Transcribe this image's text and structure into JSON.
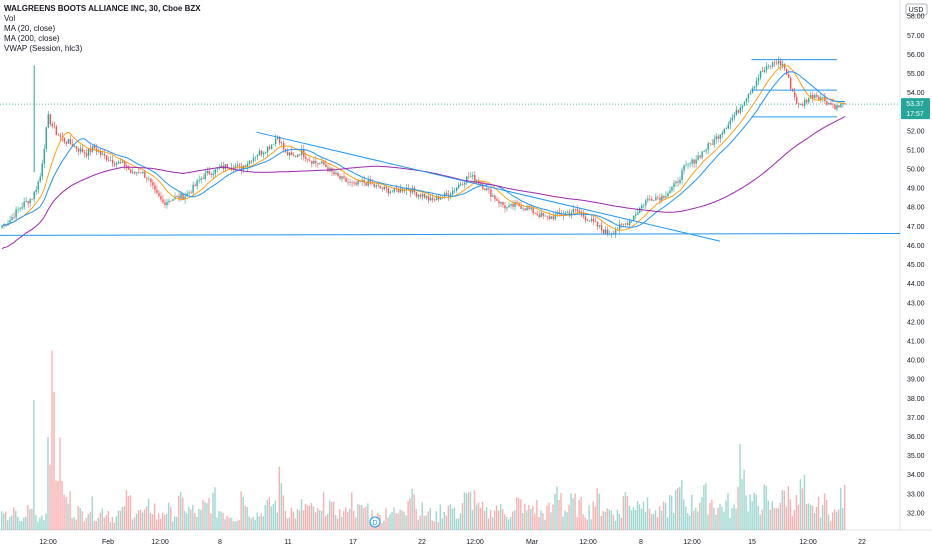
{
  "legend": {
    "title": "WALGREENS BOOTS ALLIANCE INC, 30, Cboe BZX",
    "vol": "Vol",
    "ma20": "MA (20, close)",
    "ma200": "MA (200, close)",
    "vwap": "VWAP (Session, hlc3)"
  },
  "currency": "USD",
  "price_label": "53.37",
  "countdown_label": "17:57",
  "colors": {
    "up": "#26a69a",
    "down": "#ef5350",
    "ma20": "#2196f3",
    "ma200": "#9c27b0",
    "vwap": "#ff9800",
    "trendline": "#2196f3",
    "price_badge": "#26a69a"
  },
  "chart_data": {
    "type": "candlestick",
    "y_ticks": [
      "58.00",
      "57.00",
      "56.00",
      "55.00",
      "54.00",
      "53.00",
      "52.00",
      "51.00",
      "50.00",
      "49.00",
      "48.00",
      "47.00",
      "46.00",
      "45.00",
      "44.00",
      "43.00",
      "42.00",
      "41.00",
      "40.00",
      "39.00",
      "38.00",
      "37.00",
      "36.00",
      "35.00",
      "34.00",
      "33.00",
      "32.00"
    ],
    "ylim": [
      31.5,
      58.4
    ],
    "x_ticks": [
      "12:00",
      "Feb",
      "12:00",
      "8",
      "11",
      "17",
      "22",
      "12:00",
      "Mar",
      "12:00",
      "8",
      "12:00",
      "15",
      "12:00",
      "22"
    ],
    "price_path": [
      47.0,
      47.3,
      47.8,
      48.2,
      48.5,
      49.6,
      52.7,
      51.9,
      51.5,
      51.3,
      51.0,
      50.8,
      51.1,
      50.7,
      50.5,
      50.3,
      50.2,
      49.7,
      49.9,
      49.5,
      48.7,
      48.2,
      48.4,
      48.5,
      48.6,
      49.0,
      49.5,
      49.8,
      49.9,
      50.1,
      50.2,
      50.0,
      50.3,
      50.7,
      50.9,
      51.2,
      51.7,
      50.8,
      50.6,
      50.9,
      50.5,
      50.3,
      50.2,
      49.8,
      49.5,
      49.3,
      49.1,
      49.3,
      49.2,
      49.0,
      48.9,
      48.8,
      48.9,
      49.0,
      48.7,
      48.6,
      48.3,
      48.5,
      48.6,
      48.9,
      49.3,
      49.6,
      49.4,
      49.0,
      48.6,
      48.2,
      47.9,
      48.1,
      48.0,
      47.8,
      47.6,
      47.4,
      47.5,
      47.6,
      47.7,
      47.8,
      47.5,
      47.2,
      46.9,
      46.6,
      46.8,
      47.0,
      47.3,
      47.8,
      48.3,
      48.5,
      48.5,
      48.8,
      49.2,
      50.0,
      50.3,
      50.7,
      51.1,
      51.5,
      52.0,
      52.5,
      53.0,
      53.7,
      54.3,
      55.0,
      55.3,
      55.6,
      55.4,
      54.2,
      53.2,
      53.6,
      53.9,
      53.7,
      53.4,
      53.2,
      53.37
    ],
    "volumes": [
      4,
      5,
      3,
      6,
      4,
      5,
      38,
      20,
      9,
      6,
      5,
      7,
      5,
      6,
      4,
      5,
      9,
      6,
      5,
      7,
      4,
      6,
      5,
      8,
      6,
      5,
      7,
      9,
      6,
      5,
      4,
      12,
      6,
      5,
      7,
      8,
      14,
      6,
      5,
      7,
      6,
      5,
      8,
      6,
      5,
      9,
      6,
      7,
      5,
      4,
      6,
      5,
      7,
      14,
      6,
      5,
      4,
      6,
      7,
      5,
      9,
      10,
      6,
      5,
      7,
      6,
      5,
      8,
      6,
      7,
      5,
      6,
      12,
      6,
      8,
      7,
      6,
      9,
      7,
      6,
      5,
      10,
      8,
      12,
      7,
      5,
      6,
      9,
      11,
      7,
      8,
      10,
      9,
      7,
      8,
      6,
      24,
      9,
      8,
      10,
      7,
      9,
      11,
      8,
      12,
      6,
      7,
      8,
      5,
      9,
      10
    ],
    "trendlines": [
      {
        "from": [
          0.285,
          51.9
        ],
        "to": [
          0.8,
          46.2
        ]
      },
      {
        "from": [
          0.0,
          46.5
        ],
        "to": [
          1.0,
          46.6
        ]
      },
      {
        "from": [
          0.835,
          55.7
        ],
        "to": [
          0.93,
          55.7
        ]
      },
      {
        "from": [
          0.835,
          54.1
        ],
        "to": [
          0.93,
          54.1
        ]
      },
      {
        "from": [
          0.835,
          52.7
        ],
        "to": [
          0.93,
          52.7
        ]
      }
    ],
    "dashed_price_line": 53.37
  }
}
